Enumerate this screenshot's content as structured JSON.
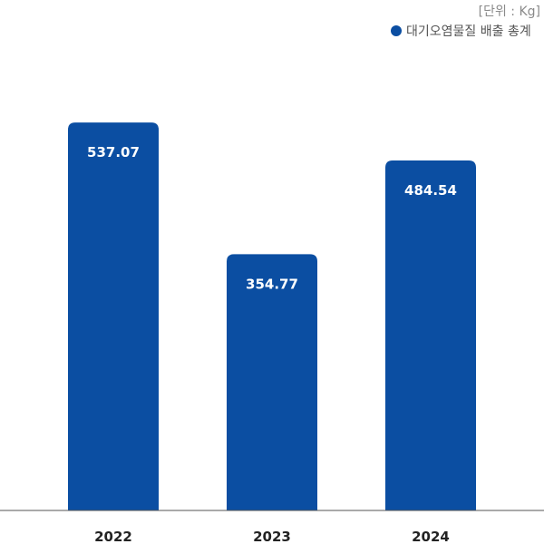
{
  "chart_data": {
    "type": "bar",
    "unit_label": "[단위 : Kg]",
    "categories": [
      "2022",
      "2023",
      "2024"
    ],
    "series": [
      {
        "name": "대기오염물질 배출 총계",
        "values": [
          537.07,
          354.77,
          484.54
        ],
        "value_labels": [
          "537.07",
          "354.77",
          "484.54"
        ],
        "color": "#0b4ea2"
      }
    ],
    "ylim": [
      0,
      600
    ],
    "grid": false,
    "legend_position": "top-right",
    "baseline_color": "#555555"
  }
}
